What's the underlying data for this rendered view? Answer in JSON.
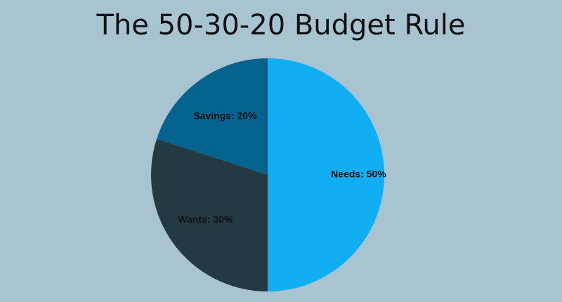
{
  "chart_data": {
    "type": "pie",
    "title": "The 50-30-20 Budget Rule",
    "slices": [
      {
        "label": "Needs: 50%",
        "category": "Needs",
        "value": 50,
        "color": "#11aef4"
      },
      {
        "label": "Wants: 30%",
        "category": "Wants",
        "value": 30,
        "color": "#243a42"
      },
      {
        "label": "Savings: 20%",
        "category": "Savings",
        "value": 20,
        "color": "#056390"
      }
    ],
    "background": "#a7c4d0",
    "legend": "none",
    "start_angle": "top, clockwise"
  }
}
